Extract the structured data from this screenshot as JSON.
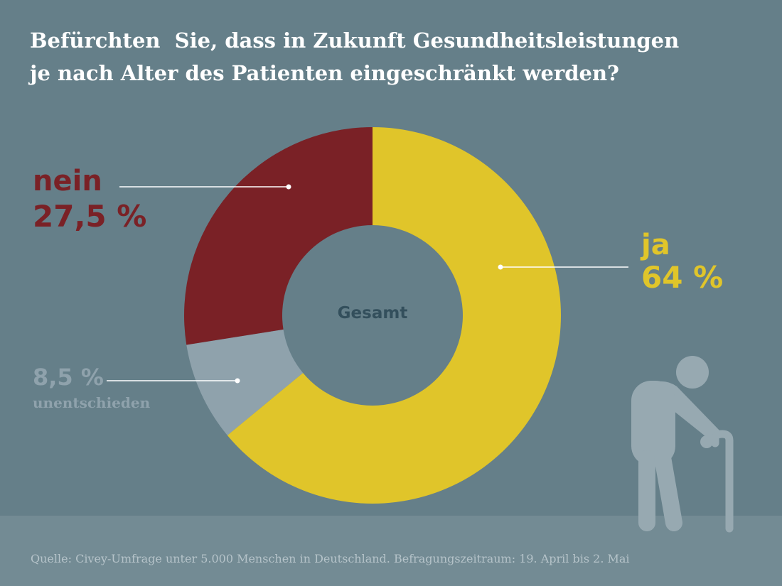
{
  "title": {
    "line1": "Befürchten  Sie, dass in Zukunft Gesundheitsleistungen",
    "line2": "je nach Alter des Patienten eingeschränkt werden?"
  },
  "footer": {
    "source": "Quelle: Civey-Umfrage unter 5.000 Menschen in Deutschland. Befragungszeitraum: 19. April bis 2. Mai"
  },
  "icons": {
    "figure": "elderly-person-with-cane-icon"
  },
  "colors": {
    "background": "#657f89",
    "ja": "#e0c52a",
    "nein": "#7a2126",
    "unentschieden": "#8fa2ac",
    "center_text": "#334f5c"
  },
  "chart_data": {
    "type": "pie",
    "variant": "donut",
    "center_label": "Gesamt",
    "slices": [
      {
        "key": "ja",
        "label": "ja",
        "value": 64,
        "display": "64 %",
        "color": "#e0c52a"
      },
      {
        "key": "unentschieden",
        "label": "unentschieden",
        "value": 8.5,
        "display": "8,5 %",
        "color": "#8fa2ac"
      },
      {
        "key": "nein",
        "label": "nein",
        "value": 27.5,
        "display": "27,5 %",
        "color": "#7a2126"
      }
    ]
  }
}
